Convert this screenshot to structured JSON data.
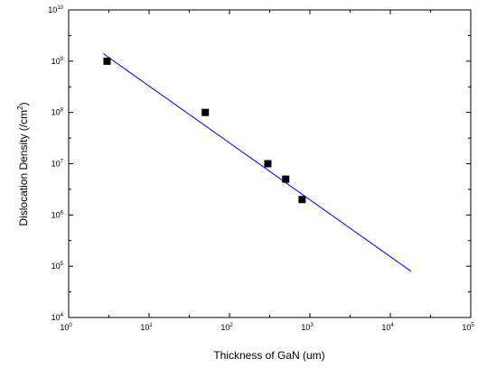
{
  "chart_data": {
    "type": "scatter",
    "title": "",
    "xlabel": "Thickness of GaN (um)",
    "ylabel_main": "Dislocation Density (/cm",
    "ylabel_exp": "2",
    "ylabel_end": ")",
    "x_scale": "log",
    "y_scale": "log",
    "xlim": [
      1,
      100000
    ],
    "ylim": [
      10000,
      10000000000
    ],
    "x_ticks": [
      {
        "base": "10",
        "exp": "0",
        "value": 1
      },
      {
        "base": "10",
        "exp": "1",
        "value": 10
      },
      {
        "base": "10",
        "exp": "2",
        "value": 100
      },
      {
        "base": "10",
        "exp": "3",
        "value": 1000
      },
      {
        "base": "10",
        "exp": "4",
        "value": 10000
      },
      {
        "base": "10",
        "exp": "5",
        "value": 100000
      }
    ],
    "y_ticks": [
      {
        "base": "10",
        "exp": "4",
        "value": 10000
      },
      {
        "base": "10",
        "exp": "5",
        "value": 100000
      },
      {
        "base": "10",
        "exp": "6",
        "value": 1000000
      },
      {
        "base": "10",
        "exp": "7",
        "value": 10000000
      },
      {
        "base": "10",
        "exp": "8",
        "value": 100000000
      },
      {
        "base": "10",
        "exp": "9",
        "value": 1000000000
      },
      {
        "base": "10",
        "exp": "10",
        "value": 10000000000
      }
    ],
    "points": [
      {
        "x": 3,
        "y": 1000000000
      },
      {
        "x": 50,
        "y": 100000000
      },
      {
        "x": 300,
        "y": 10000000
      },
      {
        "x": 500,
        "y": 5000000
      },
      {
        "x": 800,
        "y": 2000000
      }
    ],
    "fit_line": {
      "x": [
        2.7,
        18000
      ],
      "y": [
        1400000000,
        80000
      ],
      "color": "#0000ff"
    },
    "marker_color": "#000000",
    "grid": false,
    "legend": false
  }
}
